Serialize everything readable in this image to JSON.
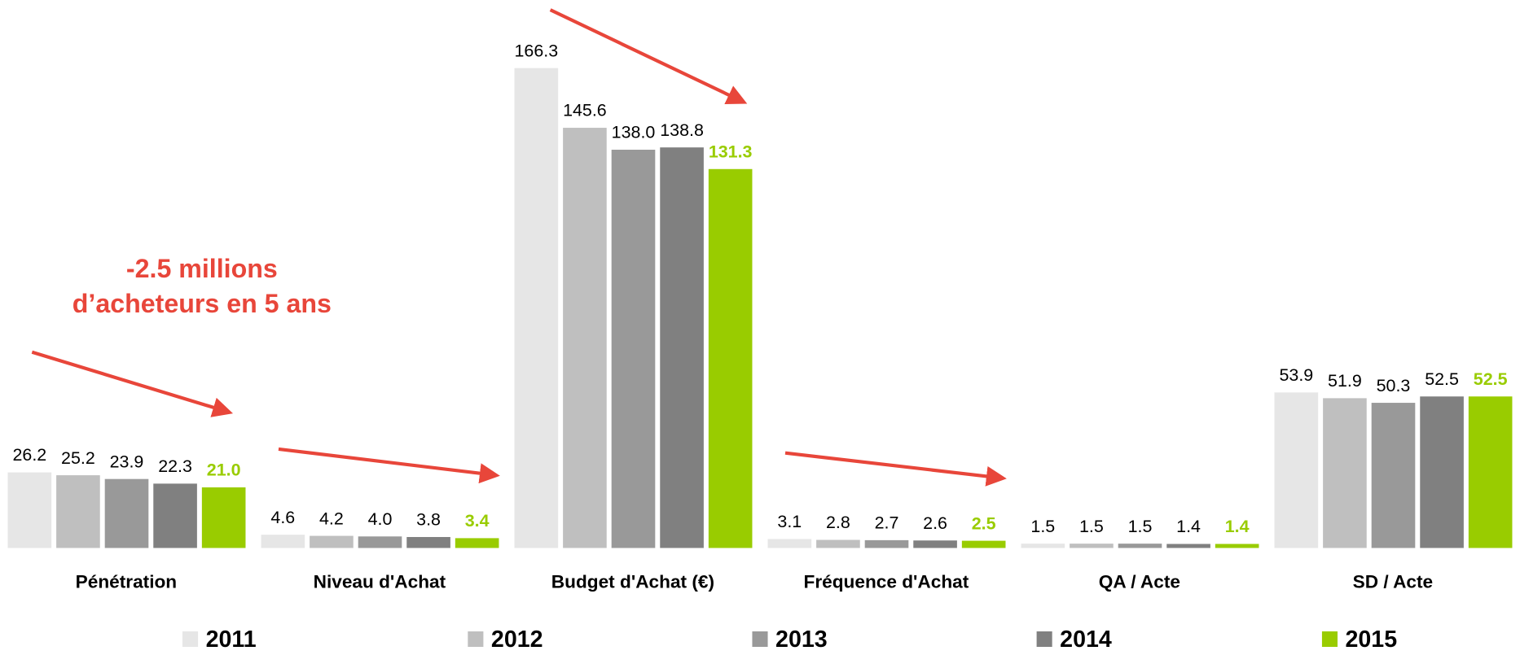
{
  "chart_data": {
    "type": "bar",
    "categories": [
      "Pénétration",
      "Niveau d'Achat",
      "Budget d'Achat (€)",
      "Fréquence d'Achat",
      "QA / Acte",
      "SD / Acte"
    ],
    "series": [
      {
        "name": "2011",
        "color": "#e6e6e6",
        "values": [
          26.2,
          4.6,
          166.3,
          3.1,
          1.5,
          53.9
        ],
        "value_labels": [
          "26.2",
          "4.6",
          "166.3",
          "3.1",
          "1.5",
          "53.9"
        ]
      },
      {
        "name": "2012",
        "color": "#bfbfbf",
        "values": [
          25.2,
          4.2,
          145.6,
          2.8,
          1.5,
          51.9
        ],
        "value_labels": [
          "25.2",
          "4.2",
          "145.6",
          "2.8",
          "1.5",
          "51.9"
        ]
      },
      {
        "name": "2013",
        "color": "#999999",
        "values": [
          23.9,
          4.0,
          138.0,
          2.7,
          1.5,
          50.3
        ],
        "value_labels": [
          "23.9",
          "4.0",
          "138.0",
          "2.7",
          "1.5",
          "50.3"
        ]
      },
      {
        "name": "2014",
        "color": "#808080",
        "values": [
          22.3,
          3.8,
          138.8,
          2.6,
          1.4,
          52.5
        ],
        "value_labels": [
          "22.3",
          "3.8",
          "138.8",
          "2.6",
          "1.4",
          "52.5"
        ]
      },
      {
        "name": "2015",
        "color": "#99cc00",
        "values": [
          21.0,
          3.4,
          131.3,
          2.5,
          1.4,
          52.5
        ],
        "value_labels": [
          "21.0",
          "3.4",
          "131.3",
          "2.5",
          "1.4",
          "52.5"
        ]
      }
    ],
    "annotations": [
      "-2.5 millions",
      "d’acheteurs en 5 ans"
    ]
  }
}
